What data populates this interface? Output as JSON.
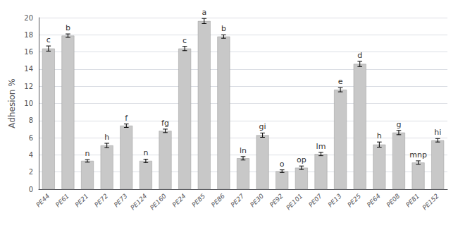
{
  "chart_data": {
    "type": "bar",
    "categories": [
      "PE44",
      "PE61",
      "PE21",
      "PE72",
      "PE73",
      "PE124",
      "PE160",
      "PE24",
      "PE85",
      "PE86",
      "PE27",
      "PE30",
      "PE92",
      "PE101",
      "PE07",
      "PE13",
      "PE25",
      "PE64",
      "PE08",
      "PE81",
      "PE152"
    ],
    "values": [
      16.4,
      17.9,
      3.3,
      5.1,
      7.4,
      3.3,
      6.8,
      16.4,
      19.6,
      17.8,
      3.6,
      6.3,
      2.1,
      2.5,
      4.1,
      11.6,
      14.6,
      5.2,
      6.6,
      3.1,
      5.7
    ],
    "errors": [
      0.3,
      0.2,
      0.15,
      0.25,
      0.2,
      0.2,
      0.2,
      0.25,
      0.3,
      0.2,
      0.2,
      0.25,
      0.15,
      0.2,
      0.2,
      0.25,
      0.3,
      0.3,
      0.25,
      0.2,
      0.2
    ],
    "labels": [
      "c",
      "b",
      "n",
      "h",
      "f",
      "n",
      "fg",
      "c",
      "a",
      "b",
      "ln",
      "gi",
      "o",
      "op",
      "lm",
      "e",
      "d",
      "h",
      "g",
      "mnp",
      "hi"
    ],
    "color": "#c8c8c8",
    "ylabel": "Adhesion %",
    "ylim": [
      0,
      20
    ],
    "yticks": [
      0,
      2,
      4,
      6,
      8,
      10,
      12,
      14,
      16,
      18,
      20
    ],
    "grid": true
  }
}
